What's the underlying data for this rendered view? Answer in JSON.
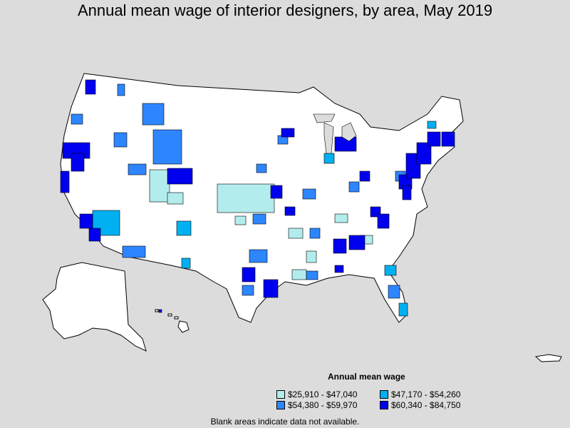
{
  "title": "Annual mean wage of interior designers, by area, May 2019",
  "legend": {
    "title": "Annual mean wage",
    "items": [
      {
        "label": "$25,910 - $47,040",
        "color": "#b3ecec"
      },
      {
        "label": "$47,170 - $54,260",
        "color": "#00b0f0"
      },
      {
        "label": "$54,380 - $59,970",
        "color": "#2e86ff"
      },
      {
        "label": "$60,340 - $84,750",
        "color": "#0000ee"
      }
    ]
  },
  "footnote": "Blank areas indicate data not available."
}
